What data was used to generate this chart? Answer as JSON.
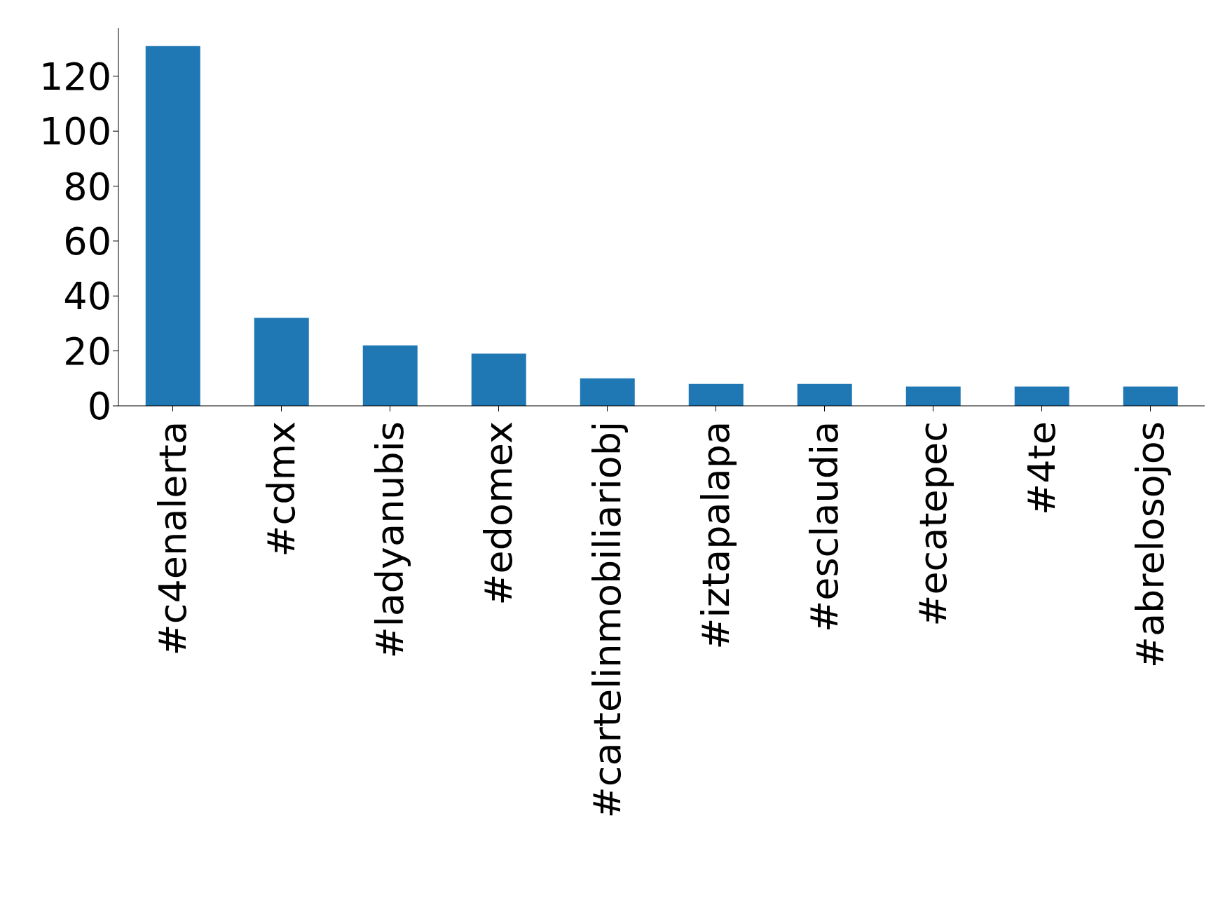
{
  "chart_data": {
    "type": "bar",
    "categories": [
      "#c4enalerta",
      "#cdmx",
      "#ladyanubis",
      "#edomex",
      "#cartelinmobiliariobj",
      "#iztapalapa",
      "#esclaudia",
      "#ecatepec",
      "#4te",
      "#abrelosojos"
    ],
    "values": [
      131,
      32,
      22,
      19,
      10,
      8,
      8,
      7,
      7,
      7
    ],
    "color": "#1f77b4",
    "ylim": [
      0,
      137.55
    ],
    "yticks": [
      0,
      20,
      40,
      60,
      80,
      100,
      120
    ],
    "grid": false,
    "legend": false
  }
}
